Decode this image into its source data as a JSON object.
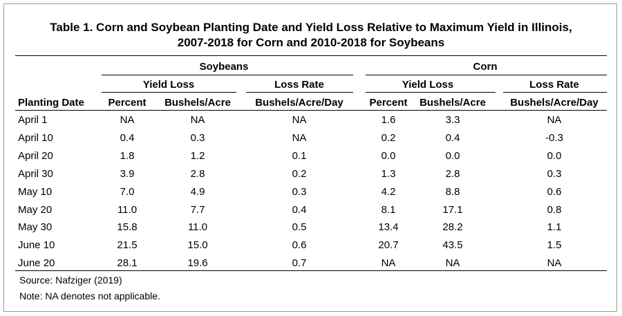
{
  "title_line1": "Table 1. Corn and Soybean Planting Date and Yield Loss Relative to Maximum Yield in Illinois,",
  "title_line2": "2007-2018 for Corn and 2010-2018 for Soybeans",
  "groups": {
    "soybeans": "Soybeans",
    "corn": "Corn"
  },
  "subgroups": {
    "yield_loss": "Yield Loss",
    "loss_rate": "Loss Rate"
  },
  "columns": {
    "planting_date": "Planting Date",
    "soy_percent": "Percent",
    "soy_bushels": "Bushels/Acre",
    "soy_rate": "Bushels/Acre/Day",
    "corn_percent": "Percent",
    "corn_bushels": "Bushels/Acre",
    "corn_rate": "Bushels/Acre/Day"
  },
  "rows": [
    [
      "April 1",
      "NA",
      "NA",
      "NA",
      "1.6",
      "3.3",
      "NA"
    ],
    [
      "April 10",
      "0.4",
      "0.3",
      "NA",
      "0.2",
      "0.4",
      "-0.3"
    ],
    [
      "April 20",
      "1.8",
      "1.2",
      "0.1",
      "0.0",
      "0.0",
      "0.0"
    ],
    [
      "April 30",
      "3.9",
      "2.8",
      "0.2",
      "1.3",
      "2.8",
      "0.3"
    ],
    [
      "May 10",
      "7.0",
      "4.9",
      "0.3",
      "4.2",
      "8.8",
      "0.6"
    ],
    [
      "May 20",
      "11.0",
      "7.7",
      "0.4",
      "8.1",
      "17.1",
      "0.8"
    ],
    [
      "May 30",
      "15.8",
      "11.0",
      "0.5",
      "13.4",
      "28.2",
      "1.1"
    ],
    [
      "June 10",
      "21.5",
      "15.0",
      "0.6",
      "20.7",
      "43.5",
      "1.5"
    ],
    [
      "June 20",
      "28.1",
      "19.6",
      "0.7",
      "NA",
      "NA",
      "NA"
    ]
  ],
  "source": "Source: Nafziger (2019)",
  "note": "Note:  NA denotes not applicable."
}
